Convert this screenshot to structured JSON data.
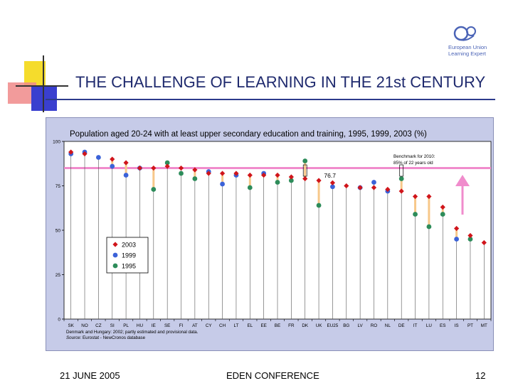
{
  "slide": {
    "title": "THE CHALLENGE OF LEARNING IN THE 21st CENTURY",
    "logo_text": [
      "European Union",
      "Learning Expert"
    ],
    "footer_left": "21 JUNE 2005",
    "footer_center": "EDEN CONFERENCE",
    "footer_right": "12",
    "colors": {
      "title": "#1f2a6e",
      "chart_bg": "#c6cbe8",
      "panel_bg": "#ffffff",
      "benchmark": "#f08ccc"
    }
  },
  "chart_data": {
    "type": "scatter",
    "title": "Population aged 20-24 with at least upper secondary education and training, 1995, 1999, 2003 (%)",
    "ylim": [
      0,
      100
    ],
    "yticks": [
      0,
      25,
      50,
      75,
      100
    ],
    "categories": [
      "SK",
      "NO",
      "CZ",
      "SI",
      "PL",
      "HU",
      "IE",
      "SE",
      "FI",
      "AT",
      "CY",
      "CH",
      "LT",
      "EL",
      "EE",
      "BE",
      "FR",
      "DK",
      "UK",
      "EU25",
      "BG",
      "LV",
      "RO",
      "NL",
      "DE",
      "IT",
      "LU",
      "ES",
      "IS",
      "PT",
      "MT"
    ],
    "series": [
      {
        "name": "2003",
        "color": "#d0151b",
        "marker": "diamond",
        "values": [
          94,
          93,
          null,
          90,
          88,
          85,
          85,
          86,
          85,
          84,
          82,
          82,
          82,
          81,
          81,
          81,
          80,
          79,
          78,
          76.7,
          75,
          74,
          74,
          73,
          72,
          69,
          69,
          63,
          51,
          47,
          43
        ]
      },
      {
        "name": "1999",
        "color": "#3b62d8",
        "marker": "circle",
        "values": [
          93,
          94,
          91,
          86,
          81,
          85,
          null,
          null,
          null,
          null,
          83,
          76,
          81,
          null,
          82,
          null,
          null,
          null,
          null,
          74.5,
          null,
          74,
          77,
          72,
          null,
          null,
          null,
          null,
          45,
          null,
          null
        ]
      },
      {
        "name": "1995",
        "color": "#2d8c5a",
        "marker": "circle",
        "values": [
          null,
          null,
          null,
          null,
          null,
          null,
          73,
          88,
          82,
          79,
          null,
          null,
          null,
          74,
          null,
          77,
          78,
          89,
          64,
          null,
          null,
          null,
          null,
          null,
          79,
          59,
          52,
          59,
          null,
          45,
          null
        ]
      }
    ],
    "benchmark": {
      "value": 85,
      "label_lines": [
        "Benchmark for 2010:",
        "85% of 22 years old"
      ]
    },
    "annotation": {
      "category": "EU25",
      "text": "76.7"
    },
    "legend": {
      "position": "left-middle",
      "entries": [
        "2003",
        "1999",
        "1995"
      ]
    },
    "notes": [
      {
        "lead": "",
        "text": "Denmark and Hungary: 2002; partly estimated and provisional data."
      },
      {
        "lead": "Source:",
        "text": " Eurostat - NewCronos database"
      }
    ]
  }
}
